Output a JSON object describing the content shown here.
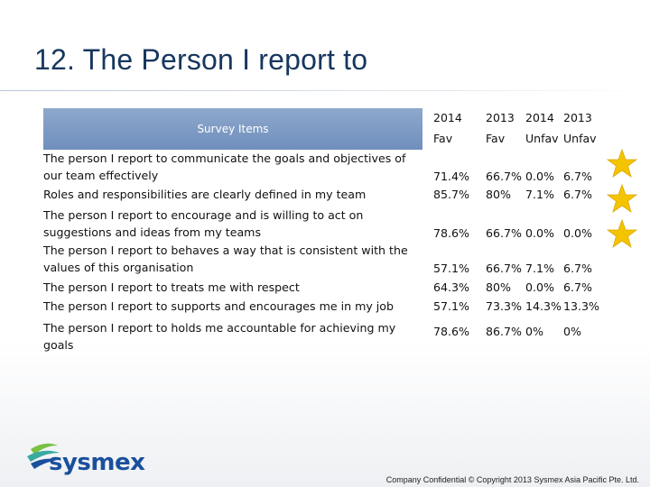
{
  "slide": {
    "title": "12. The Person I report to"
  },
  "table": {
    "survey_items_label": "Survey Items",
    "columns": [
      {
        "year": "2014",
        "type": "Fav"
      },
      {
        "year": "2013",
        "type": "Fav"
      },
      {
        "year": "2014",
        "type": "Unfav"
      },
      {
        "year": "2013",
        "type": "Unfav"
      }
    ],
    "rows": [
      {
        "item": "The person I report to communicate the goals and objectives of our team effectively",
        "values": [
          "71.4%",
          "66.7%",
          "0.0%",
          "6.7%"
        ]
      },
      {
        "item": "Roles and responsibilities are clearly defined in my team",
        "values": [
          "85.7%",
          "80%",
          "7.1%",
          "6.7%"
        ]
      },
      {
        "item": "The person I report to encourage and is willing to act on suggestions and ideas from my teams",
        "values": [
          "78.6%",
          "66.7%",
          "0.0%",
          "0.0%"
        ]
      },
      {
        "item": "The person I report to behaves  a way that is consistent with the values of this organisation",
        "values": [
          "57.1%",
          "66.7%",
          "7.1%",
          "6.7%"
        ]
      },
      {
        "item": "The person I report to treats me with respect",
        "values": [
          "64.3%",
          "80%",
          "0.0%",
          "6.7%"
        ]
      },
      {
        "item": "The person I report to supports and encourages me in my job",
        "values": [
          "57.1%",
          "73.3%",
          "14.3%",
          "13.3%"
        ]
      },
      {
        "item": "The person I report to holds me accountable for achieving my goals",
        "values": [
          "78.6%",
          "86.7%",
          "0%",
          "0%"
        ]
      }
    ]
  },
  "decor": {
    "star_icon": "star-icon",
    "star_color": "#f5c400",
    "header_color": "#7a97c4",
    "title_color": "#17375e"
  },
  "logo": {
    "text": "sysmex"
  },
  "footer": {
    "text": "Company Confidential © Copyright 2013 Sysmex Asia Pacific Pte. Ltd."
  }
}
